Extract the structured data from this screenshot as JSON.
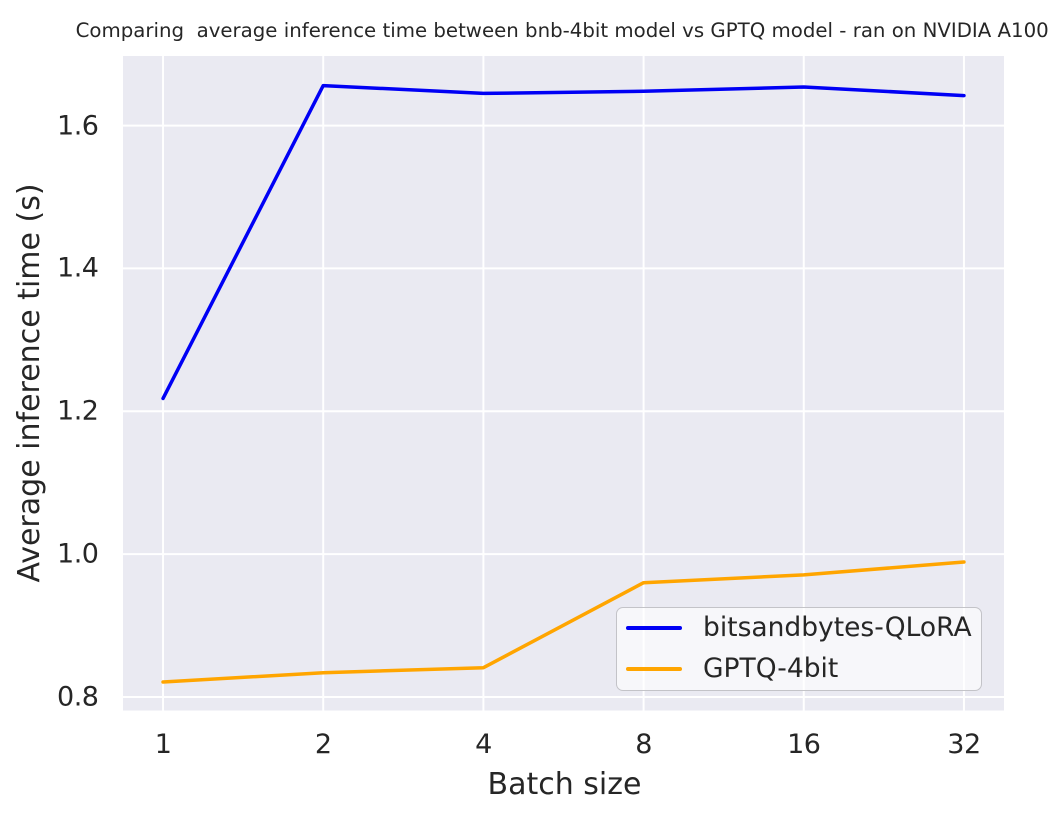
{
  "chart_data": {
    "type": "line",
    "title": "Comparing  average inference time between bnb-4bit model vs GPTQ model - ran on NVIDIA A100",
    "xlabel": "Batch size",
    "ylabel": "Average inference time (s)",
    "x": [
      1,
      2,
      4,
      8,
      16,
      32
    ],
    "x_tick_labels": [
      "1",
      "2",
      "4",
      "8",
      "16",
      "32"
    ],
    "x_scale": "log2",
    "y_ticks": [
      0.8,
      1.0,
      1.2,
      1.4,
      1.6
    ],
    "y_tick_labels": [
      "0.8",
      "1.0",
      "1.2",
      "1.4",
      "1.6"
    ],
    "ylim": [
      0.7811,
      1.6974
    ],
    "grid": true,
    "legend_position": "lower right",
    "series": [
      {
        "name": "bitsandbytes-QLoRA",
        "color": "#0000f5",
        "values": [
          1.218,
          1.656,
          1.645,
          1.648,
          1.654,
          1.642
        ]
      },
      {
        "name": "GPTQ-4bit",
        "color": "#ffa500",
        "values": [
          0.821,
          0.834,
          0.841,
          0.96,
          0.971,
          0.989
        ]
      }
    ],
    "colors": {
      "plot_background": "#eaeaf2",
      "figure_background": "#ffffff",
      "grid_color": "#ffffff",
      "text_color": "#262626",
      "legend_border": "#cccccc"
    }
  }
}
